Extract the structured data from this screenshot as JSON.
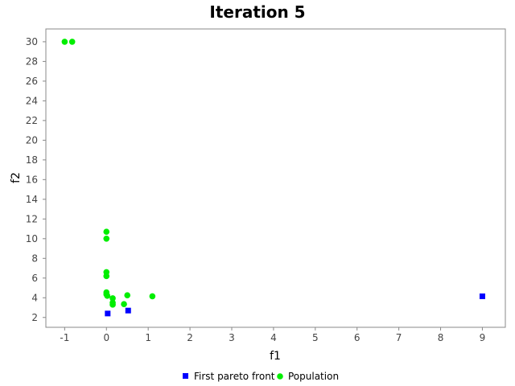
{
  "chart_data": {
    "type": "scatter",
    "title": "Iteration 5",
    "xlabel": "f1",
    "ylabel": "f2",
    "xlim": [
      -1.45,
      9.55
    ],
    "ylim": [
      1.0,
      31.3
    ],
    "xticks": [
      -1,
      0,
      1,
      2,
      3,
      4,
      5,
      6,
      7,
      8,
      9
    ],
    "yticks": [
      2,
      4,
      6,
      8,
      10,
      12,
      14,
      16,
      18,
      20,
      22,
      24,
      26,
      28,
      30
    ],
    "tick_labels_x": [
      "-1",
      "0",
      "1",
      "2",
      "3",
      "4",
      "5",
      "6",
      "7",
      "8",
      "9"
    ],
    "tick_labels_y": [
      "2",
      "4",
      "6",
      "8",
      "10",
      "12",
      "14",
      "16",
      "18",
      "20",
      "22",
      "24",
      "26",
      "28",
      "30"
    ],
    "grid": false,
    "legend_position": "bottom",
    "series": [
      {
        "name": "First pareto front",
        "marker": "square",
        "color": "#0000ff",
        "points": [
          {
            "x": 0.03,
            "y": 2.4
          },
          {
            "x": 0.52,
            "y": 2.7
          },
          {
            "x": 9.0,
            "y": 4.15
          }
        ]
      },
      {
        "name": "Population",
        "marker": "circle",
        "color": "#00ee00",
        "points": [
          {
            "x": -1.0,
            "y": 30.0
          },
          {
            "x": -0.82,
            "y": 30.0
          },
          {
            "x": 0.0,
            "y": 10.7
          },
          {
            "x": 0.0,
            "y": 10.0
          },
          {
            "x": 0.0,
            "y": 6.6
          },
          {
            "x": 0.0,
            "y": 6.2
          },
          {
            "x": 0.0,
            "y": 4.55
          },
          {
            "x": 0.0,
            "y": 4.35
          },
          {
            "x": 0.02,
            "y": 4.2
          },
          {
            "x": 0.15,
            "y": 3.95
          },
          {
            "x": 0.15,
            "y": 3.5
          },
          {
            "x": 0.15,
            "y": 3.3
          },
          {
            "x": 0.42,
            "y": 3.35
          },
          {
            "x": 0.5,
            "y": 4.25
          },
          {
            "x": 1.1,
            "y": 4.15
          }
        ]
      }
    ]
  }
}
